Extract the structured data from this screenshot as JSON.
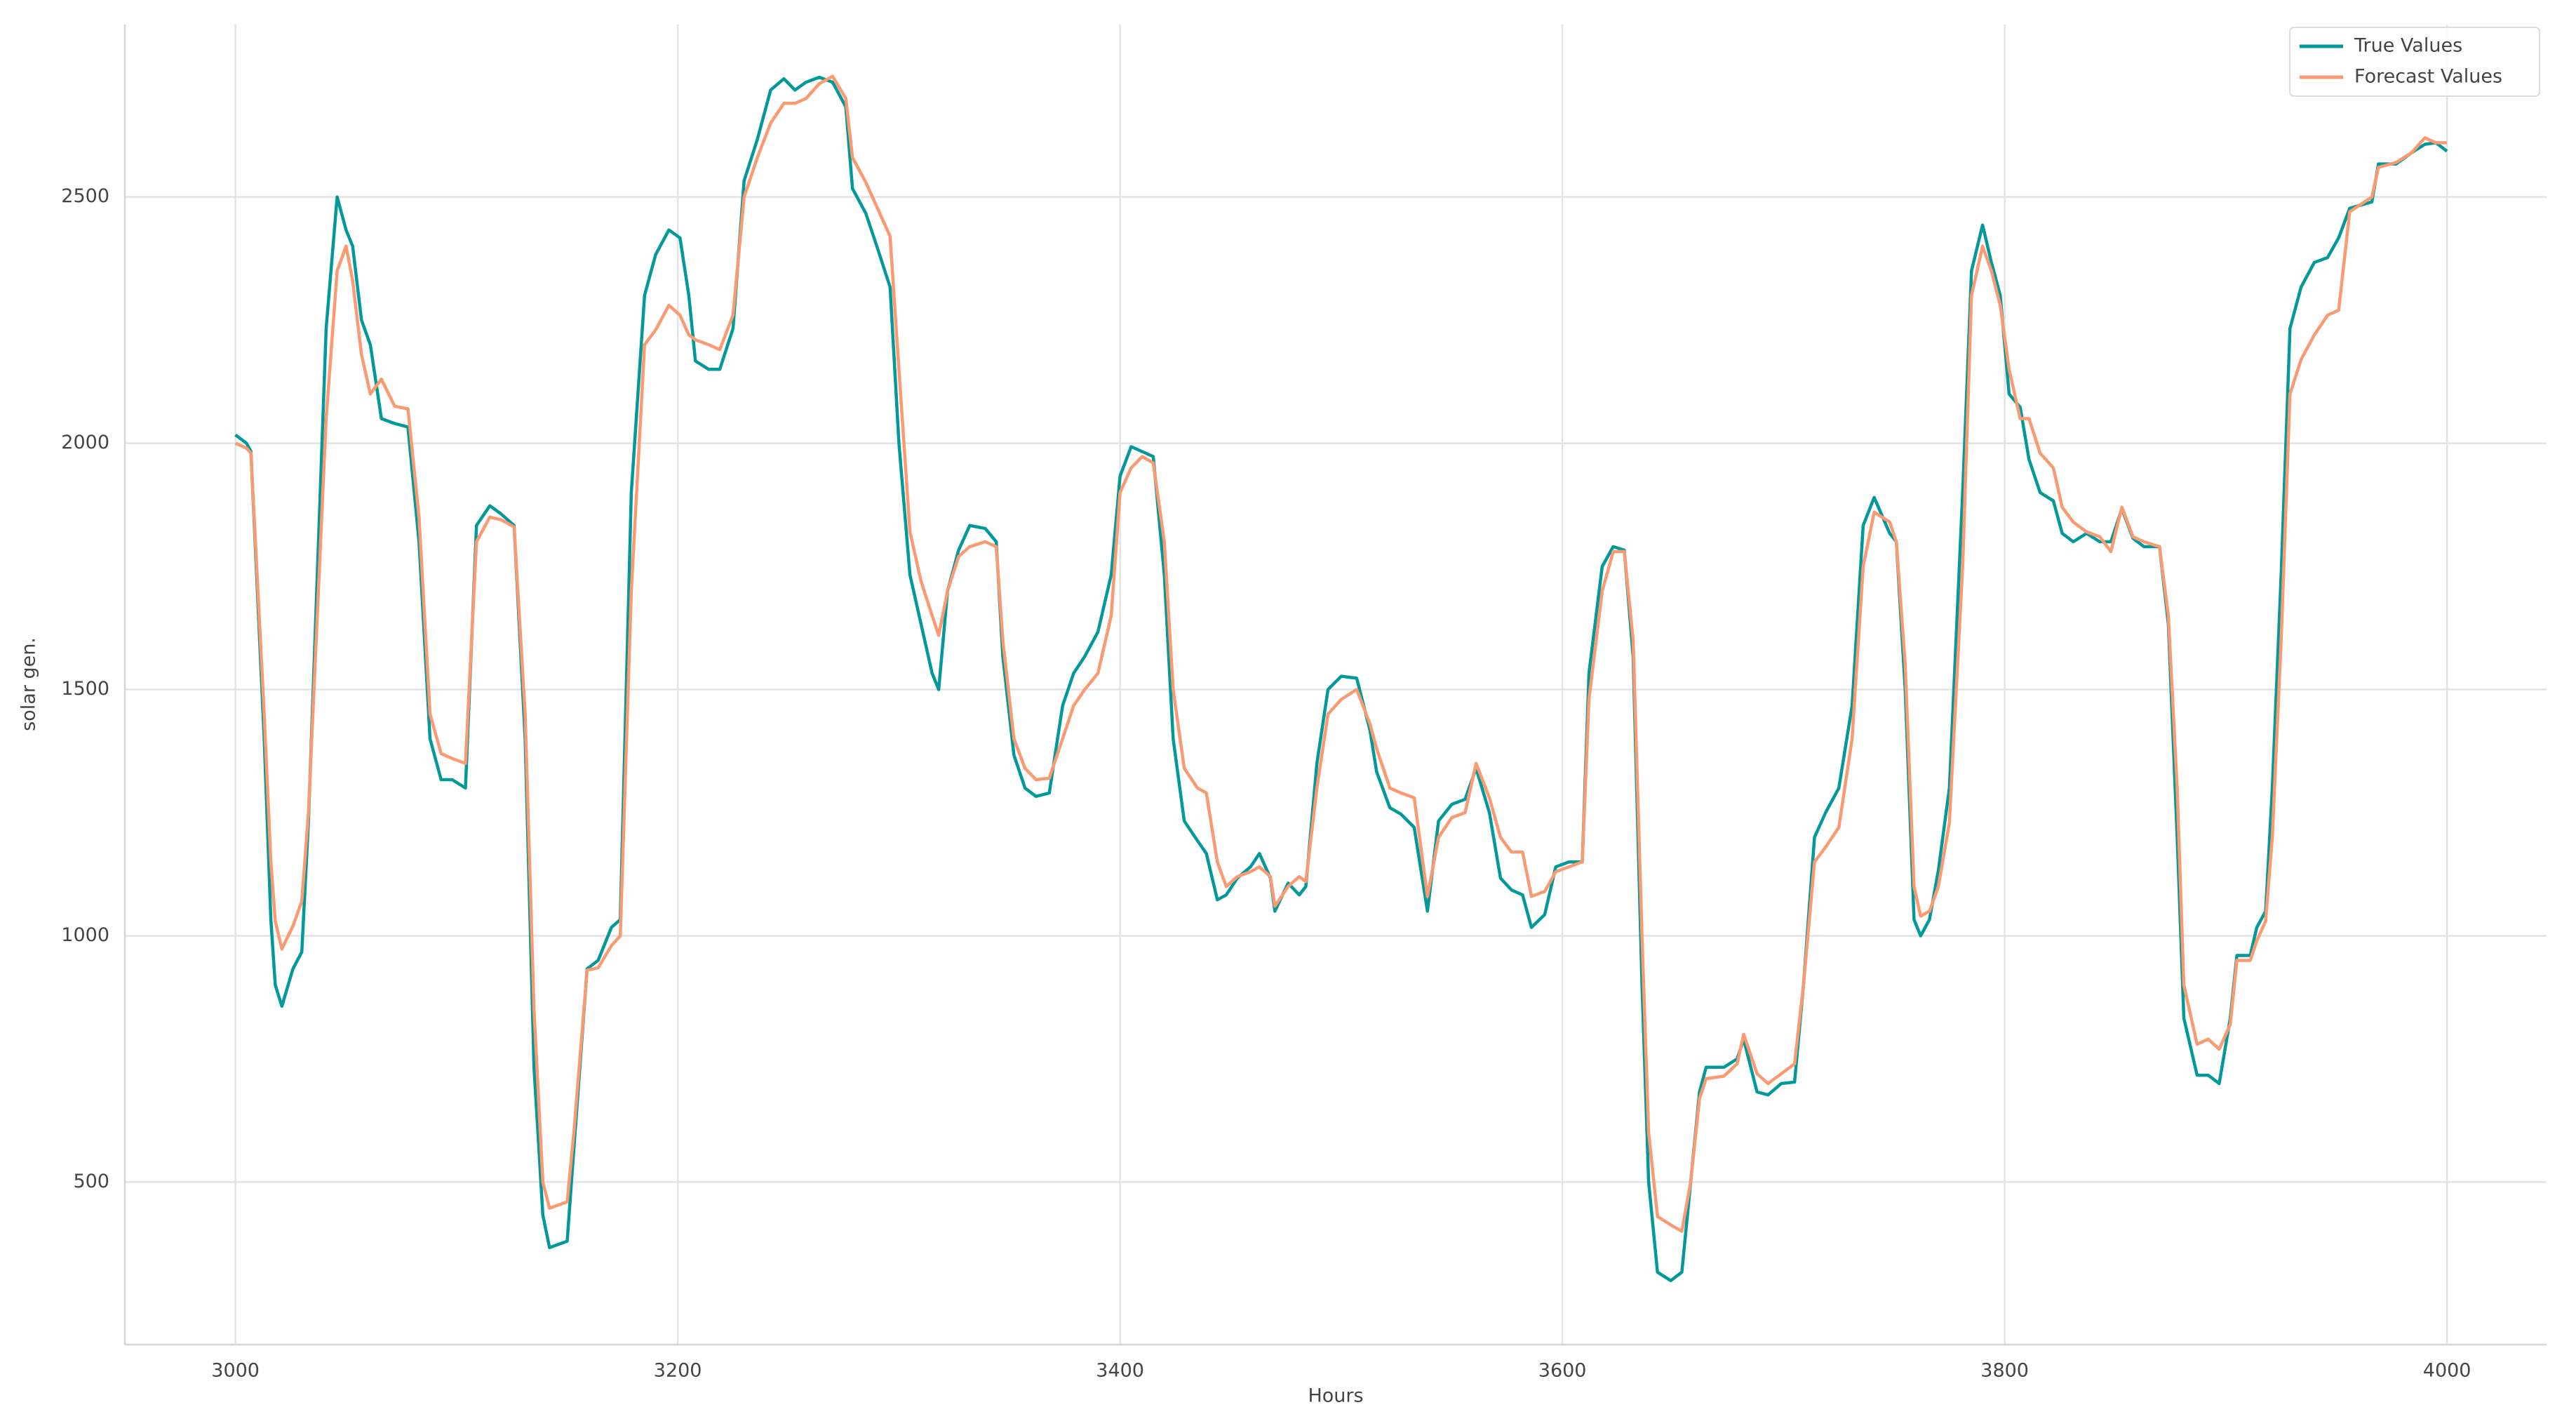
{
  "chart_data": {
    "type": "line",
    "xlabel": "Hours",
    "ylabel": "solar gen.",
    "x": [
      3000,
      3005,
      3007,
      3013,
      3016,
      3018,
      3021,
      3026,
      3030,
      3033,
      3037,
      3041,
      3046,
      3050,
      3053,
      3057,
      3061,
      3066,
      3072,
      3078,
      3083,
      3088,
      3093,
      3098,
      3104,
      3109,
      3115,
      3120,
      3126,
      3131,
      3135,
      3139,
      3142,
      3150,
      3153,
      3159,
      3164,
      3170,
      3174,
      3179,
      3185,
      3190,
      3196,
      3201,
      3205,
      3208,
      3214,
      3219,
      3225,
      3230,
      3236,
      3242,
      3248,
      3253,
      3258,
      3264,
      3270,
      3276,
      3279,
      3285,
      3290,
      3296,
      3300,
      3305,
      3310,
      3315,
      3318,
      3322,
      3327,
      3332,
      3339,
      3344,
      3347,
      3352,
      3357,
      3362,
      3368,
      3374,
      3379,
      3384,
      3390,
      3396,
      3400,
      3405,
      3410,
      3415,
      3420,
      3424,
      3429,
      3435,
      3439,
      3444,
      3448,
      3453,
      3459,
      3463,
      3468,
      3470,
      3476,
      3481,
      3484,
      3489,
      3494,
      3500,
      3507,
      3513,
      3516,
      3522,
      3527,
      3533,
      3539,
      3544,
      3550,
      3556,
      3561,
      3567,
      3572,
      3577,
      3582,
      3586,
      3592,
      3597,
      3603,
      3609,
      3612,
      3618,
      3623,
      3628,
      3632,
      3636,
      3639,
      3643,
      3649,
      3654,
      3658,
      3662,
      3665,
      3673,
      3679,
      3682,
      3688,
      3693,
      3699,
      3705,
      3709,
      3714,
      3719,
      3725,
      3731,
      3736,
      3741,
      3748,
      3751,
      3755,
      3759,
      3762,
      3766,
      3770,
      3775,
      3781,
      3785,
      3790,
      3794,
      3798,
      3802,
      3807,
      3811,
      3816,
      3822,
      3826,
      3831,
      3837,
      3843,
      3848,
      3853,
      3858,
      3863,
      3870,
      3874,
      3878,
      3881,
      3887,
      3892,
      3897,
      3902,
      3905,
      3911,
      3914,
      3918,
      3921,
      3925,
      3929,
      3934,
      3940,
      3946,
      3951,
      3956,
      3966,
      3969,
      3977,
      3984,
      3990,
      3995,
      4000
    ],
    "series": [
      {
        "name": "True Values",
        "color": "#03999a",
        "values": [
          2017,
          2000,
          1983,
          1400,
          1033,
          900,
          857,
          933,
          967,
          1233,
          1733,
          2233,
          2500,
          2433,
          2400,
          2250,
          2200,
          2050,
          2040,
          2033,
          1800,
          1400,
          1317,
          1317,
          1300,
          1833,
          1873,
          1857,
          1833,
          1400,
          733,
          433,
          367,
          380,
          567,
          933,
          950,
          1017,
          1033,
          1900,
          2300,
          2383,
          2433,
          2417,
          2300,
          2167,
          2150,
          2150,
          2233,
          2533,
          2617,
          2717,
          2740,
          2717,
          2733,
          2743,
          2733,
          2683,
          2517,
          2467,
          2400,
          2317,
          2000,
          1733,
          1633,
          1533,
          1500,
          1700,
          1783,
          1833,
          1827,
          1800,
          1567,
          1367,
          1300,
          1283,
          1290,
          1467,
          1533,
          1567,
          1617,
          1733,
          1933,
          1993,
          1983,
          1973,
          1733,
          1400,
          1233,
          1193,
          1167,
          1073,
          1083,
          1117,
          1140,
          1167,
          1117,
          1050,
          1107,
          1083,
          1100,
          1350,
          1500,
          1527,
          1523,
          1417,
          1333,
          1260,
          1247,
          1220,
          1050,
          1233,
          1267,
          1277,
          1340,
          1250,
          1117,
          1093,
          1083,
          1017,
          1043,
          1140,
          1150,
          1150,
          1533,
          1750,
          1790,
          1783,
          1567,
          900,
          500,
          317,
          300,
          317,
          500,
          683,
          733,
          733,
          750,
          790,
          683,
          677,
          700,
          703,
          900,
          1200,
          1250,
          1300,
          1467,
          1833,
          1890,
          1817,
          1800,
          1500,
          1033,
          1000,
          1033,
          1133,
          1300,
          1900,
          2350,
          2443,
          2367,
          2300,
          2100,
          2073,
          1967,
          1900,
          1883,
          1817,
          1800,
          1817,
          1800,
          1800,
          1867,
          1807,
          1790,
          1790,
          1633,
          1200,
          833,
          717,
          717,
          700,
          833,
          960,
          960,
          1017,
          1050,
          1300,
          1733,
          2233,
          2317,
          2367,
          2377,
          2417,
          2477,
          2490,
          2567,
          2567,
          2590,
          2607,
          2610,
          2593
        ]
      },
      {
        "name": "Forecast Values",
        "color": "#fa9a72",
        "values": [
          2000,
          1990,
          1980,
          1450,
          1150,
          1030,
          973,
          1020,
          1070,
          1250,
          1650,
          2050,
          2350,
          2400,
          2330,
          2180,
          2100,
          2130,
          2075,
          2070,
          1850,
          1450,
          1370,
          1360,
          1350,
          1800,
          1850,
          1845,
          1830,
          1450,
          850,
          500,
          447,
          460,
          600,
          930,
          935,
          980,
          1000,
          1700,
          2200,
          2230,
          2280,
          2260,
          2220,
          2210,
          2200,
          2190,
          2260,
          2500,
          2580,
          2650,
          2690,
          2690,
          2700,
          2730,
          2745,
          2700,
          2580,
          2530,
          2480,
          2420,
          2150,
          1820,
          1720,
          1650,
          1610,
          1700,
          1770,
          1790,
          1800,
          1790,
          1600,
          1400,
          1340,
          1317,
          1320,
          1400,
          1467,
          1500,
          1533,
          1650,
          1900,
          1950,
          1973,
          1960,
          1800,
          1500,
          1340,
          1300,
          1290,
          1150,
          1100,
          1120,
          1130,
          1140,
          1120,
          1060,
          1100,
          1120,
          1110,
          1300,
          1450,
          1480,
          1500,
          1430,
          1380,
          1300,
          1290,
          1280,
          1080,
          1200,
          1240,
          1250,
          1350,
          1280,
          1200,
          1170,
          1170,
          1080,
          1090,
          1130,
          1140,
          1150,
          1480,
          1700,
          1780,
          1780,
          1600,
          1000,
          600,
          430,
          413,
          400,
          500,
          670,
          710,
          715,
          740,
          800,
          720,
          700,
          720,
          740,
          900,
          1150,
          1180,
          1220,
          1400,
          1750,
          1860,
          1840,
          1800,
          1550,
          1100,
          1040,
          1050,
          1100,
          1230,
          1750,
          2300,
          2400,
          2350,
          2280,
          2150,
          2050,
          2050,
          1980,
          1950,
          1870,
          1840,
          1820,
          1810,
          1780,
          1870,
          1810,
          1800,
          1790,
          1650,
          1300,
          900,
          780,
          790,
          770,
          820,
          950,
          950,
          990,
          1030,
          1200,
          1600,
          2100,
          2170,
          2220,
          2260,
          2270,
          2470,
          2500,
          2560,
          2570,
          2590,
          2620,
          2610,
          2610
        ]
      }
    ],
    "xlim": [
      2950,
      4045
    ],
    "ylim": [
      170,
      2850
    ],
    "xticks": [
      3000,
      3200,
      3400,
      3600,
      3800,
      4000
    ],
    "yticks": [
      500,
      1000,
      1500,
      2000,
      2500
    ],
    "grid": true,
    "legend": "upper right"
  }
}
